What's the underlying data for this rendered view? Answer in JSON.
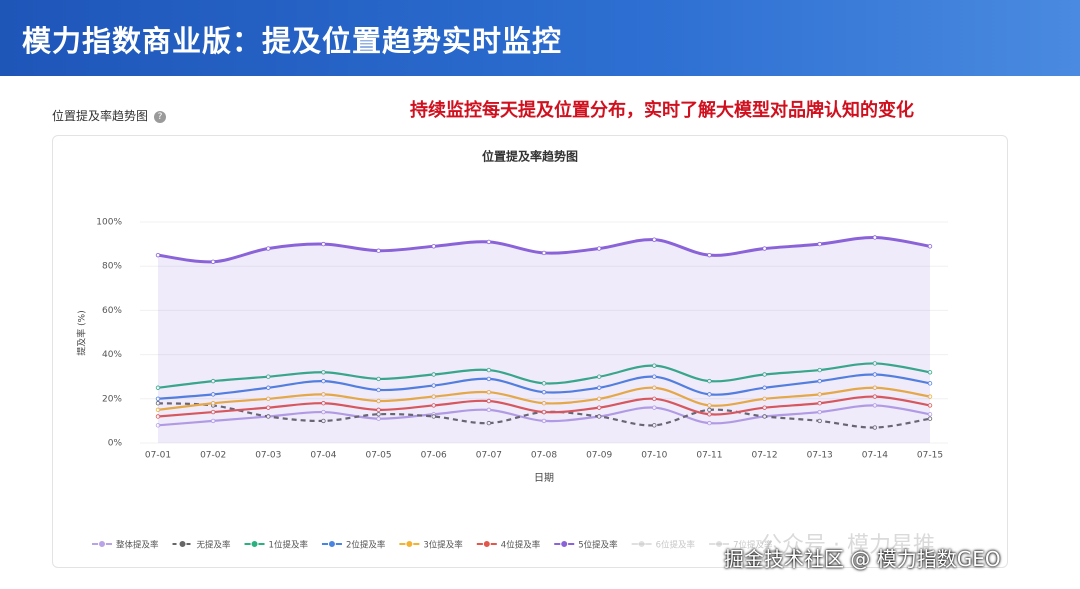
{
  "header": {
    "title": "模力指数商业版：提及位置趋势实时监控"
  },
  "panel_title": "位置提及率趋势图",
  "help_icon": "?",
  "annotation": "持续监控每天提及位置分布，实时了解大模型对品牌认知的变化",
  "watermarks": [
    "公众号 · 模力星推",
    "掘金技术社区 @ 模力指数GEO"
  ],
  "chart_data": {
    "type": "line",
    "title": "位置提及率趋势图",
    "x_label": "日期",
    "y_label": "提及率 (%)",
    "categories": [
      "07-01",
      "07-02",
      "07-03",
      "07-04",
      "07-05",
      "07-06",
      "07-07",
      "07-08",
      "07-09",
      "07-10",
      "07-11",
      "07-12",
      "07-13",
      "07-14",
      "07-15"
    ],
    "ylim": [
      0,
      100
    ],
    "yticks": [
      {
        "value": 0,
        "label": "0%"
      },
      {
        "value": 20,
        "label": "20%"
      },
      {
        "value": 40,
        "label": "40%"
      },
      {
        "value": 60,
        "label": "60%"
      },
      {
        "value": 80,
        "label": "80%"
      },
      {
        "value": 100,
        "label": "100%"
      }
    ],
    "series": [
      {
        "name": "整体提及率",
        "color": "#b7a3e6",
        "dashed": false,
        "values": [
          8,
          10,
          12,
          14,
          11,
          13,
          15,
          10,
          12,
          16,
          9,
          12,
          14,
          17,
          13
        ]
      },
      {
        "name": "无提及率",
        "color": "#666666",
        "dashed": true,
        "values": [
          18,
          17,
          12,
          10,
          13,
          12,
          9,
          14,
          12,
          8,
          15,
          12,
          10,
          7,
          11
        ]
      },
      {
        "name": "1位提及率",
        "color": "#2bb07f",
        "dashed": false,
        "values": [
          25,
          28,
          30,
          32,
          29,
          31,
          33,
          27,
          30,
          35,
          28,
          31,
          33,
          36,
          32
        ]
      },
      {
        "name": "2位提及率",
        "color": "#4a84e0",
        "dashed": false,
        "values": [
          20,
          22,
          25,
          28,
          24,
          26,
          29,
          23,
          25,
          30,
          22,
          25,
          28,
          31,
          27
        ]
      },
      {
        "name": "3位提及率",
        "color": "#f2b233",
        "dashed": false,
        "values": [
          15,
          18,
          20,
          22,
          19,
          21,
          23,
          18,
          20,
          25,
          17,
          20,
          22,
          25,
          21
        ]
      },
      {
        "name": "4位提及率",
        "color": "#e2574c",
        "dashed": false,
        "values": [
          12,
          14,
          16,
          18,
          15,
          17,
          19,
          14,
          16,
          20,
          13,
          16,
          18,
          21,
          17
        ]
      },
      {
        "name": "5位提及率",
        "color": "#8a63d9",
        "dashed": false,
        "area": true,
        "values": [
          85,
          82,
          88,
          90,
          87,
          89,
          91,
          86,
          88,
          92,
          85,
          88,
          90,
          93,
          89
        ]
      },
      {
        "name": "6位提及率",
        "color": "#cccccc",
        "hidden": true,
        "values": [
          null,
          null,
          null,
          null,
          null,
          null,
          null,
          null,
          null,
          null,
          null,
          null,
          null,
          null,
          null
        ]
      },
      {
        "name": "7位提及率",
        "color": "#cccccc",
        "hidden": true,
        "values": [
          null,
          null,
          null,
          null,
          null,
          null,
          null,
          null,
          null,
          null,
          null,
          null,
          null,
          null,
          null
        ]
      }
    ]
  }
}
